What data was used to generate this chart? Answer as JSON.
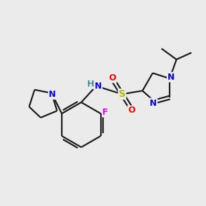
{
  "background_color": "#ebebeb",
  "bond_color": "#1a1a1a",
  "atom_colors": {
    "N": "#0000ee",
    "O": "#ff0000",
    "S": "#b8b800",
    "F": "#ee00ee",
    "H": "#4a9090",
    "C": "#1a1a1a"
  },
  "figsize": [
    3.0,
    3.0
  ],
  "dpi": 100,
  "bond_lw": 1.6,
  "font_size": 8.5
}
